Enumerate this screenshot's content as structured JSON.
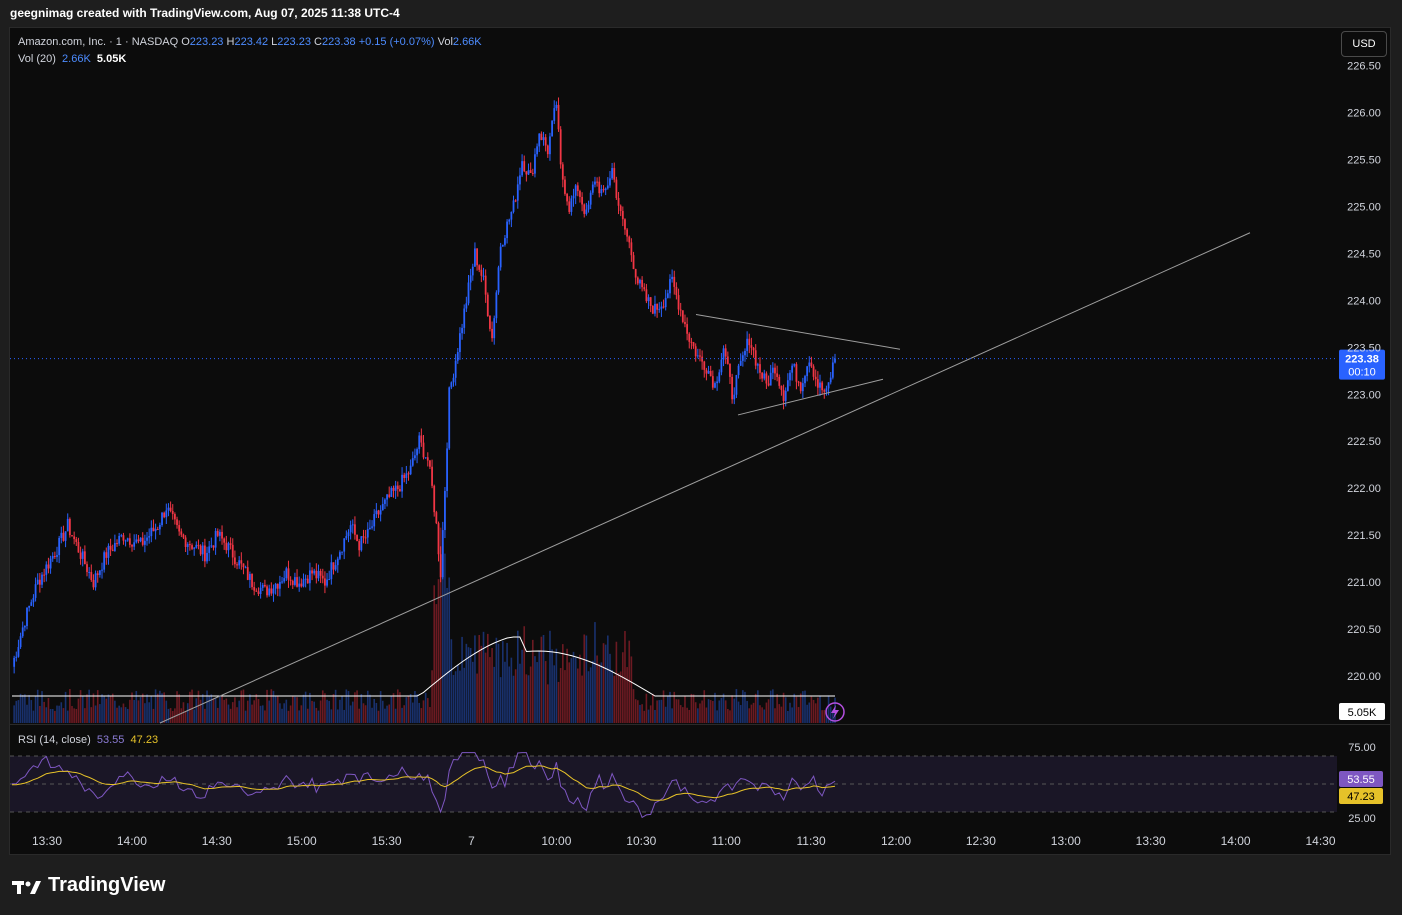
{
  "header": {
    "title": "geegnimag created with TradingView.com, Aug 07, 2025 11:38 UTC-4"
  },
  "legend": {
    "symbol": "Amazon.com, Inc. · 1 · NASDAQ",
    "open_label": "O",
    "open": "223.23",
    "high_label": "H",
    "high": "223.42",
    "low_label": "L",
    "low": "223.23",
    "close_label": "C",
    "close": "223.38",
    "change": "+0.15 (+0.07%)",
    "vol_label": "Vol",
    "vol": "2.66K",
    "vol20_label": "Vol (20)",
    "vol20_a": "2.66K",
    "vol20_b": "5.05K",
    "rsi_label": "RSI (14, close)",
    "rsi_value": "53.55",
    "rsi_ma": "47.23"
  },
  "currency": "USD",
  "brand": {
    "name": "TradingView"
  },
  "colors": {
    "up": "#2962ff",
    "down": "#f23645",
    "background": "#0c0c0c",
    "rsi_line": "#7e57c2",
    "rsi_ma": "#e6c229"
  },
  "chart_data": [
    {
      "type": "candlestick",
      "price_scale": [
        "226.50",
        "226.00",
        "225.50",
        "225.00",
        "224.50",
        "224.00",
        "223.50",
        "223.00",
        "222.50",
        "222.00",
        "221.50",
        "221.00",
        "220.50",
        "220.00"
      ],
      "ylim": [
        219.5,
        226.9
      ],
      "time_labels": [
        "13:30",
        "14:00",
        "14:30",
        "15:00",
        "15:30",
        "7",
        "10:00",
        "10:30",
        "11:00",
        "11:30",
        "12:00",
        "12:30",
        "13:00",
        "13:30",
        "14:00",
        "14:30"
      ],
      "last_price": "223.38",
      "countdown": "00:10",
      "volume_label": "5.05K",
      "approx_close_path": [
        [
          0,
          220.1
        ],
        [
          6,
          220.6
        ],
        [
          12,
          221.0
        ],
        [
          22,
          221.4
        ],
        [
          26,
          221.6
        ],
        [
          32,
          221.3
        ],
        [
          38,
          221.0
        ],
        [
          44,
          221.3
        ],
        [
          52,
          221.5
        ],
        [
          60,
          221.4
        ],
        [
          68,
          221.6
        ],
        [
          72,
          221.8
        ],
        [
          78,
          221.5
        ],
        [
          84,
          221.4
        ],
        [
          90,
          221.3
        ],
        [
          96,
          221.5
        ],
        [
          100,
          221.4
        ],
        [
          106,
          221.2
        ],
        [
          112,
          221.0
        ],
        [
          118,
          220.9
        ],
        [
          124,
          221.0
        ],
        [
          128,
          221.1
        ],
        [
          134,
          221.0
        ],
        [
          140,
          221.1
        ],
        [
          146,
          221.0
        ],
        [
          152,
          221.3
        ],
        [
          158,
          221.6
        ],
        [
          162,
          221.4
        ],
        [
          166,
          221.5
        ],
        [
          170,
          221.7
        ],
        [
          176,
          221.9
        ],
        [
          180,
          222.0
        ],
        [
          186,
          222.2
        ],
        [
          190,
          222.5
        ],
        [
          194,
          222.3
        ],
        [
          196,
          222.0
        ],
        [
          198,
          221.6
        ],
        [
          200,
          221.1
        ],
        [
          202,
          222.0
        ],
        [
          204,
          223.0
        ],
        [
          208,
          223.5
        ],
        [
          212,
          224.0
        ],
        [
          216,
          224.5
        ],
        [
          220,
          224.2
        ],
        [
          224,
          223.6
        ],
        [
          228,
          224.6
        ],
        [
          234,
          225.0
        ],
        [
          238,
          225.5
        ],
        [
          242,
          225.3
        ],
        [
          246,
          225.8
        ],
        [
          250,
          225.6
        ],
        [
          254,
          226.1
        ],
        [
          256,
          225.4
        ],
        [
          260,
          225.0
        ],
        [
          264,
          225.2
        ],
        [
          268,
          224.9
        ],
        [
          272,
          225.3
        ],
        [
          276,
          225.1
        ],
        [
          280,
          225.4
        ],
        [
          284,
          224.9
        ],
        [
          288,
          224.6
        ],
        [
          292,
          224.2
        ],
        [
          296,
          224.0
        ],
        [
          300,
          223.9
        ],
        [
          304,
          224.0
        ],
        [
          308,
          224.2
        ],
        [
          312,
          223.9
        ],
        [
          316,
          223.6
        ],
        [
          320,
          223.4
        ],
        [
          324,
          223.3
        ],
        [
          328,
          223.1
        ],
        [
          332,
          223.5
        ],
        [
          336,
          223.0
        ],
        [
          340,
          223.3
        ],
        [
          344,
          223.6
        ],
        [
          348,
          223.3
        ],
        [
          352,
          223.1
        ],
        [
          356,
          223.3
        ],
        [
          360,
          223.0
        ],
        [
          364,
          223.3
        ],
        [
          368,
          223.1
        ],
        [
          372,
          223.4
        ],
        [
          376,
          223.1
        ],
        [
          380,
          223.0
        ],
        [
          384,
          223.4
        ]
      ]
    },
    {
      "type": "line",
      "title": "RSI (14, close)",
      "levels": [
        "75.00",
        "25.00"
      ],
      "last_value": "53.55",
      "ma_value": "47.23"
    }
  ]
}
